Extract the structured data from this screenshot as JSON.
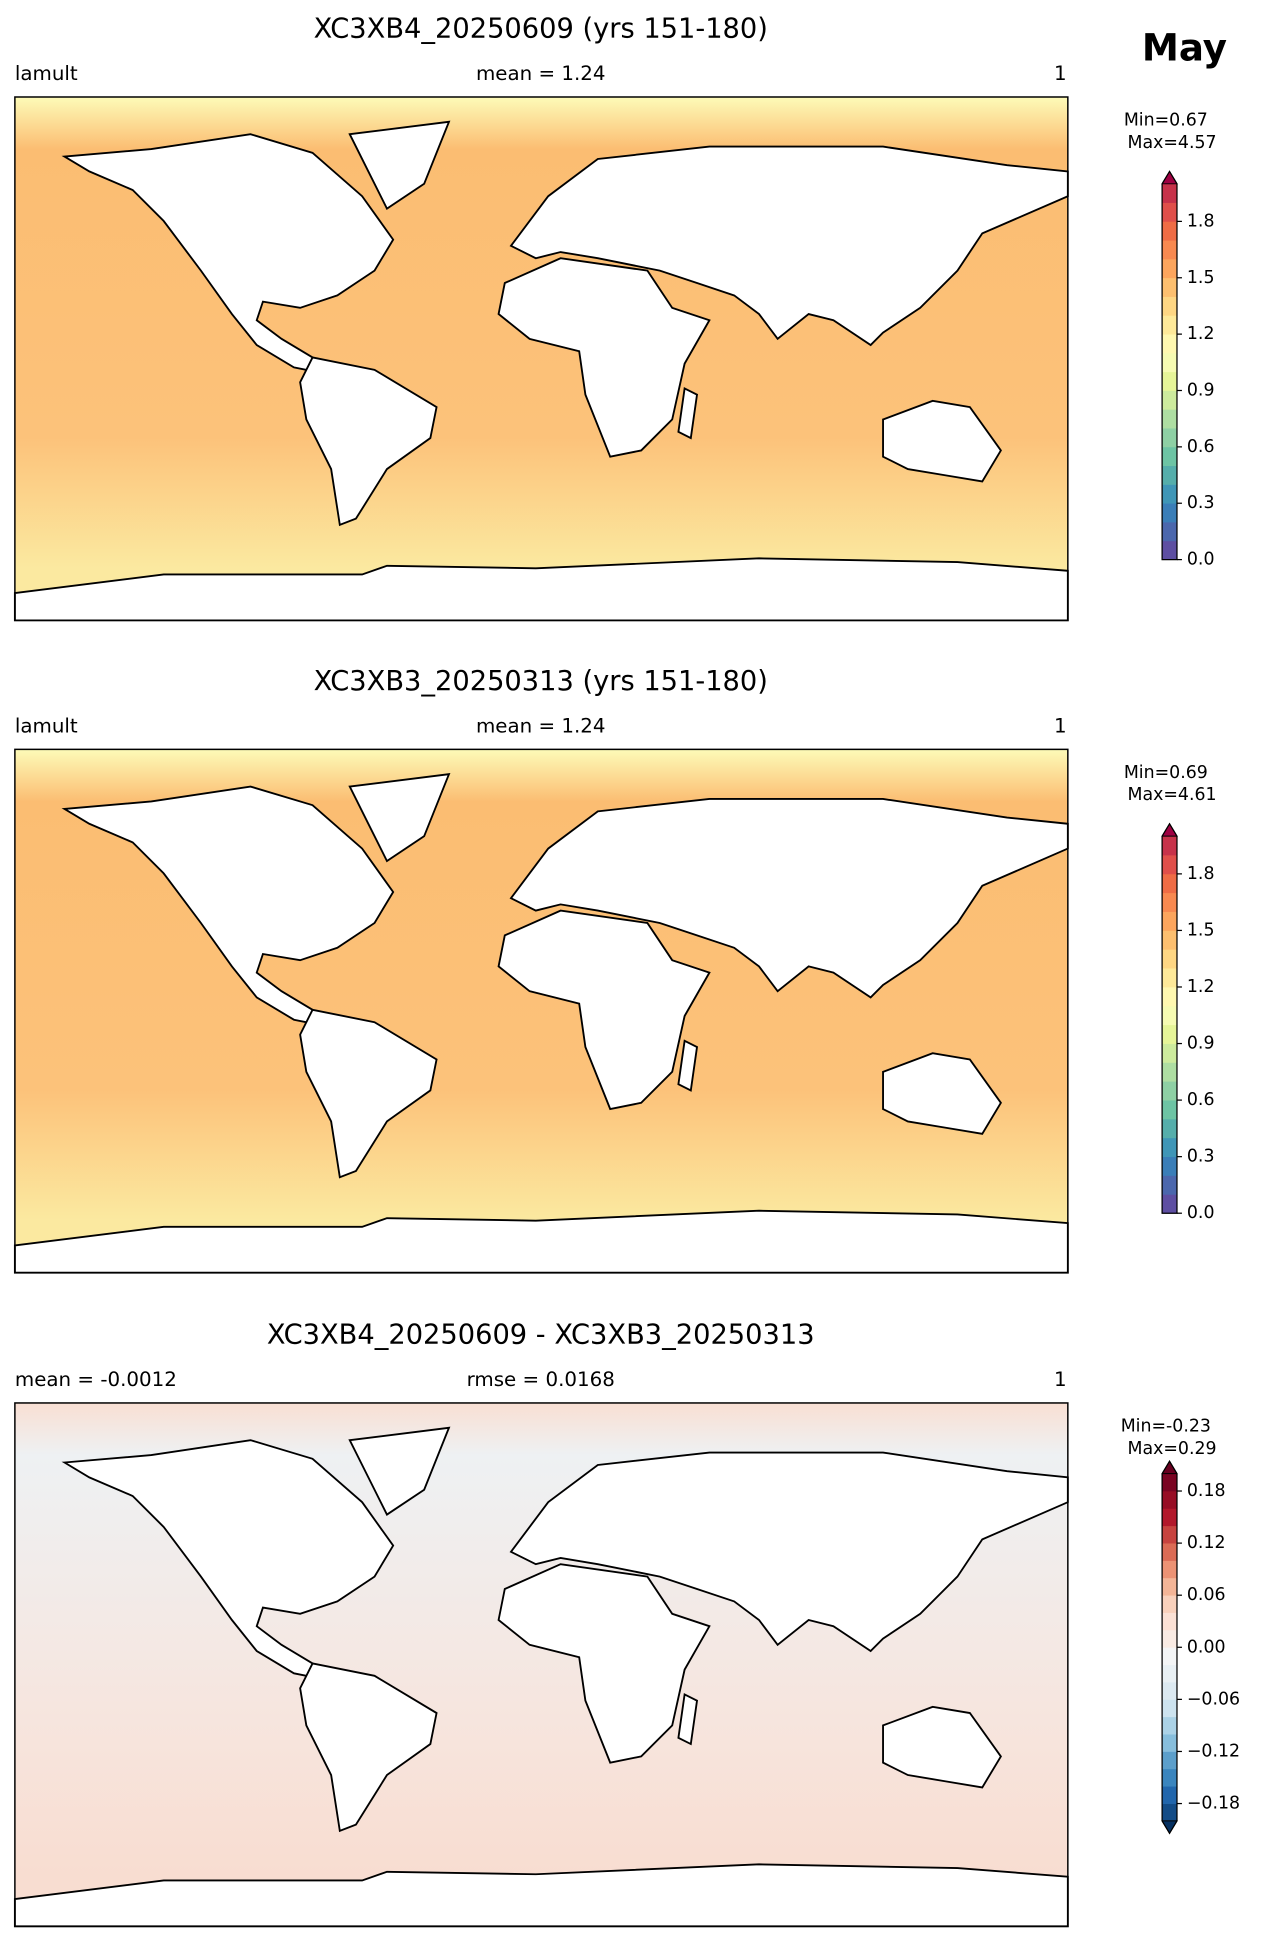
{
  "figure_label": "May",
  "chart_data": [
    {
      "type": "map",
      "title": "XC3XB4_20250609 (yrs 151-180)",
      "left_label": "lamult",
      "center_label": "mean = 1.24",
      "right_label": "1",
      "min_label": "Min=0.67",
      "max_label": "Max=4.57",
      "colorbar": {
        "ylim": [
          0,
          2
        ],
        "extend": "max",
        "yticks": [
          {
            "value": 0,
            "label": "0.0"
          },
          0.3,
          0.6,
          0.9,
          1.2,
          1.5,
          1.8
        ],
        "colors": [
          "#5e4fa2",
          "#4b67ad",
          "#3a7eb8",
          "#3f96b7",
          "#55aeab",
          "#6dc4a4",
          "#8ed0a4",
          "#aedea2",
          "#cdeb9d",
          "#e6f598",
          "#f6fbb2",
          "#fff8b0",
          "#fee999",
          "#fed683",
          "#fdbf6f",
          "#fca55d",
          "#f88950",
          "#ef6c45",
          "#e04f4a",
          "#c7324a"
        ],
        "over_color": "#9e0142"
      },
      "ocean_colors": [
        "#fdfbb8",
        "#fbbd72",
        "#fcc27a",
        "#fbe9a0"
      ]
    },
    {
      "type": "map",
      "title": "XC3XB3_20250313 (yrs 151-180)",
      "left_label": "lamult",
      "center_label": "mean = 1.24",
      "right_label": "1",
      "min_label": "Min=0.69",
      "max_label": "Max=4.61",
      "colorbar": {
        "ylim": [
          0,
          2
        ],
        "extend": "max",
        "yticks": [
          {
            "value": 0,
            "label": "0.0"
          },
          0.3,
          0.6,
          0.9,
          1.2,
          1.5,
          1.8
        ],
        "colors": [
          "#5e4fa2",
          "#4b67ad",
          "#3a7eb8",
          "#3f96b7",
          "#55aeab",
          "#6dc4a4",
          "#8ed0a4",
          "#aedea2",
          "#cdeb9d",
          "#e6f598",
          "#f6fbb2",
          "#fff8b0",
          "#fee999",
          "#fed683",
          "#fdbf6f",
          "#fca55d",
          "#f88950",
          "#ef6c45",
          "#e04f4a",
          "#c7324a"
        ],
        "over_color": "#9e0142"
      },
      "ocean_colors": [
        "#fdfbb8",
        "#fbbd72",
        "#fcc27a",
        "#fbe9a0"
      ]
    },
    {
      "type": "map",
      "title": "XC3XB4_20250609 - XC3XB3_20250313",
      "left_label": "mean = -0.0012",
      "center_label": "rmse = 0.0168",
      "right_label": "1",
      "min_label": "Min=-0.23",
      "max_label": "Max=0.29",
      "colorbar": {
        "ylim": [
          -0.2,
          0.2
        ],
        "extend": "both",
        "yticks": [
          {
            "value": -0.18,
            "label": "−0.18"
          },
          {
            "value": -0.12,
            "label": "−0.12"
          },
          {
            "value": -0.06,
            "label": "−0.06"
          },
          {
            "value": 0,
            "label": "0.00"
          },
          0.06,
          0.12,
          0.18
        ],
        "colors": [
          "#134c87",
          "#2166ac",
          "#3a85be",
          "#5c9fcb",
          "#87bedc",
          "#abd2e6",
          "#cde3ef",
          "#dce9f1",
          "#e9f0f4",
          "#f4f5f6",
          "#f9ebe4",
          "#fbe1d5",
          "#f9d1bc",
          "#f4b597",
          "#ec9274",
          "#db6b55",
          "#c7433f",
          "#b2182b",
          "#970d25",
          "#7a0422"
        ],
        "under_color": "#053061",
        "over_color": "#67001f"
      },
      "ocean_colors": [
        "#f9dfd3",
        "#eef1f3",
        "#f7e4dc",
        "#f8ddd1"
      ]
    }
  ]
}
